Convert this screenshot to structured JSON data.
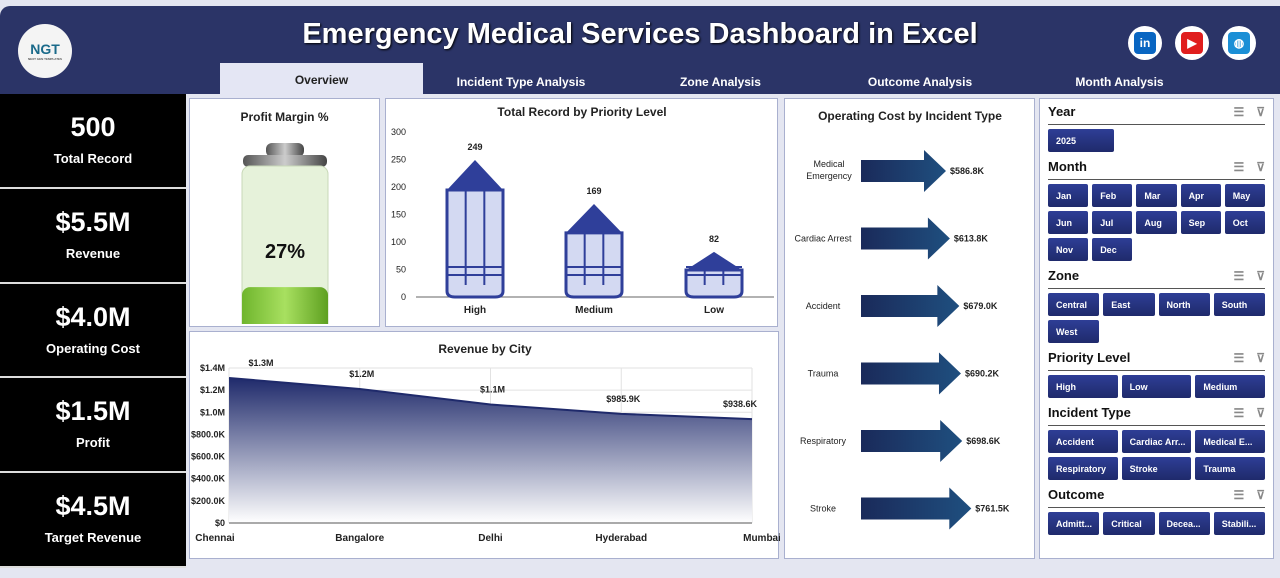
{
  "header": {
    "title": "Emergency Medical Services Dashboard in Excel",
    "logo_text": "NGT",
    "logo_sub": "NEXT GEN TEMPLATES",
    "tabs": [
      "Overview",
      "Incident Type Analysis",
      "Zone Analysis",
      "Outcome Analysis",
      "Month Analysis"
    ],
    "social": [
      {
        "name": "linkedin-icon",
        "glyph": "in",
        "color": "#0a66c2"
      },
      {
        "name": "youtube-icon",
        "glyph": "▶",
        "color": "#e01e1e"
      },
      {
        "name": "globe-icon",
        "glyph": "◍",
        "color": "#1b8fd6"
      }
    ]
  },
  "kpis": [
    {
      "value": "500",
      "label": "Total Record"
    },
    {
      "value": "$5.5M",
      "label": "Revenue"
    },
    {
      "value": "$4.0M",
      "label": "Operating Cost"
    },
    {
      "value": "$1.5M",
      "label": "Profit"
    },
    {
      "value": "$4.5M",
      "label": "Target Revenue"
    }
  ],
  "profit_margin": {
    "title": "Profit Margin %",
    "value": "27%",
    "fraction": 0.27
  },
  "chart_data": [
    {
      "type": "bar",
      "title": "Total Record by Priority Level",
      "categories": [
        "High",
        "Medium",
        "Low"
      ],
      "values": [
        249,
        169,
        82
      ],
      "ylim": [
        0,
        300
      ],
      "yticks": [
        "0",
        "50",
        "100",
        "150",
        "200",
        "250",
        "300"
      ]
    },
    {
      "type": "area",
      "title": "Revenue by City",
      "categories": [
        "Chennai",
        "Bangalore",
        "Delhi",
        "Hyderabad",
        "Mumbai"
      ],
      "values": [
        1310000,
        1210000,
        1070000,
        985900,
        938600
      ],
      "labels": [
        "$1.3M",
        "$1.2M",
        "$1.1M",
        "$985.9K",
        "$938.6K"
      ],
      "ylim": [
        0,
        1400000
      ],
      "yticks": [
        "$0",
        "$200.0K",
        "$400.0K",
        "$600.0K",
        "$800.0K",
        "$1.0M",
        "$1.2M",
        "$1.4M"
      ]
    },
    {
      "type": "bar",
      "orientation": "horizontal",
      "title": "Operating Cost by Incident Type",
      "categories": [
        "Medical Emergency",
        "Cardiac Arrest",
        "Accident",
        "Trauma",
        "Respiratory",
        "Stroke"
      ],
      "values": [
        586800,
        613800,
        679000,
        690200,
        698600,
        761500
      ],
      "labels": [
        "$586.8K",
        "$613.8K",
        "$679.0K",
        "$690.2K",
        "$698.6K",
        "$761.5K"
      ]
    }
  ],
  "slicers": [
    {
      "title": "Year",
      "items": [
        "2025"
      ],
      "cols": 4
    },
    {
      "title": "Month",
      "items": [
        "Jan",
        "Feb",
        "Mar",
        "Apr",
        "May",
        "Jun",
        "Jul",
        "Aug",
        "Sep",
        "Oct",
        "Nov",
        "Dec"
      ],
      "cols": 5
    },
    {
      "title": "Zone",
      "items": [
        "Central",
        "East",
        "North",
        "South",
        "West"
      ],
      "cols": 4
    },
    {
      "title": "Priority Level",
      "items": [
        "High",
        "Low",
        "Medium"
      ],
      "cols": 3
    },
    {
      "title": "Incident Type",
      "items": [
        "Accident",
        "Cardiac Arr...",
        "Medical E...",
        "Respiratory",
        "Stroke",
        "Trauma"
      ],
      "cols": 3
    },
    {
      "title": "Outcome",
      "items": [
        "Admitt...",
        "Critical",
        "Decea...",
        "Stabili..."
      ],
      "cols": 4
    }
  ]
}
